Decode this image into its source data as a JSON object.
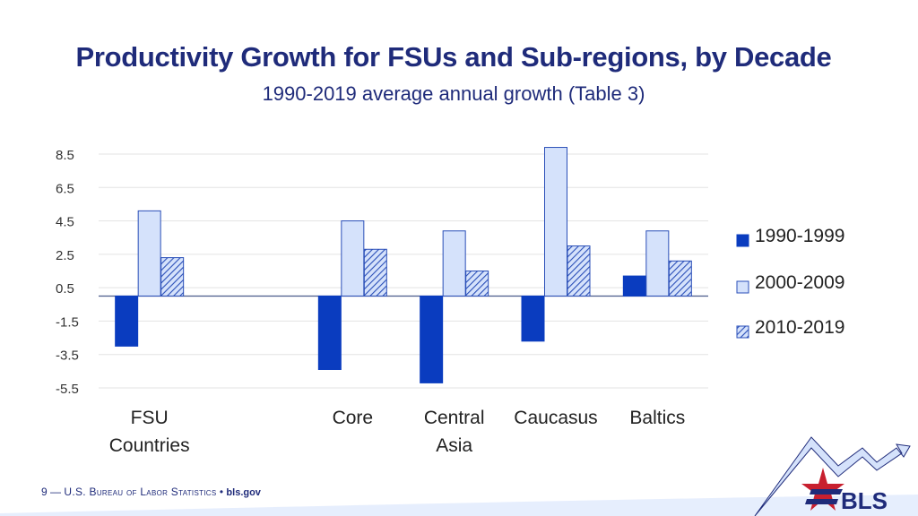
{
  "title": "Productivity Growth for FSUs and Sub-regions, by Decade",
  "subtitle": "1990-2019 average annual growth (Table 3)",
  "footer": {
    "page_number": "9",
    "dash": "—",
    "org": "U.S. Bureau of Labor Statistics",
    "bullet": "•",
    "site": "bls.gov"
  },
  "logo_text": "BLS",
  "colors": {
    "title": "#1f2b7a",
    "series1": "#0a3cbf",
    "series2": "#d5e2fb",
    "series3_fill": "#d5e2fb",
    "series3_hatch": "#2a4fb8",
    "logo_red": "#c8202f",
    "logo_blue": "#1f2b7a"
  },
  "chart_data": {
    "type": "bar",
    "categories": [
      "FSU Countries",
      "",
      "Core",
      "Central Asia",
      "Caucasus",
      "Baltics"
    ],
    "category_lines": [
      [
        "FSU",
        "Countries"
      ],
      [],
      [
        "Core"
      ],
      [
        "Central",
        "Asia"
      ],
      [
        "Caucasus"
      ],
      [
        "Baltics"
      ]
    ],
    "series": [
      {
        "name": "1990-1999",
        "values": [
          -3.0,
          null,
          -4.4,
          -5.2,
          -2.7,
          1.2
        ]
      },
      {
        "name": "2000-2009",
        "values": [
          5.1,
          null,
          4.5,
          3.9,
          8.9,
          3.9
        ]
      },
      {
        "name": "2010-2019",
        "values": [
          2.3,
          null,
          2.8,
          1.5,
          3.0,
          2.1
        ]
      }
    ],
    "yticks": [
      8.5,
      6.5,
      4.5,
      2.5,
      0.5,
      -1.5,
      -3.5,
      -5.5
    ],
    "ylim": [
      -5.5,
      8.5
    ],
    "grid": true,
    "legend_position": "right"
  }
}
